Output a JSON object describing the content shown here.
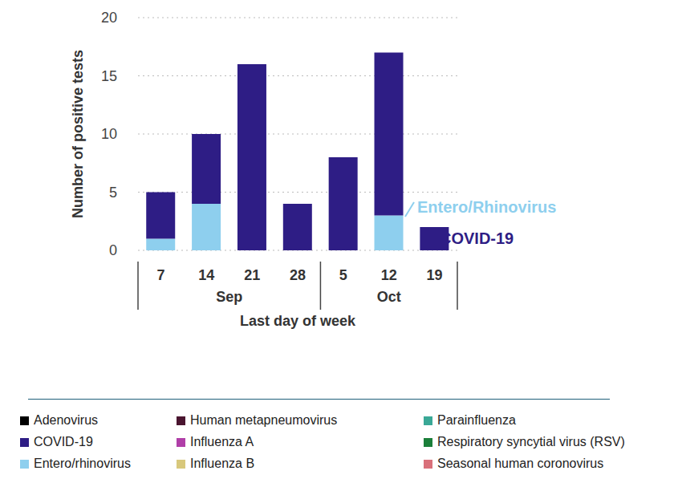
{
  "chart_data": {
    "type": "bar",
    "stacked": true,
    "grid": true,
    "legend": "bottom",
    "data_labels": false,
    "x_label": "Last day of week",
    "y_label": "Number of positive tests",
    "categories": [
      "7",
      "14",
      "21",
      "28",
      "5",
      "12",
      "19"
    ],
    "groups": [
      {
        "label": "Sep",
        "size": 4
      },
      {
        "label": "Oct",
        "size": 3
      }
    ],
    "ylim": [
      0,
      20
    ],
    "yticks": [
      0,
      5,
      10,
      15,
      20
    ],
    "series": [
      {
        "name": "Adenovirus",
        "color": "#000000",
        "values": [
          0,
          0,
          0,
          0,
          0,
          0,
          0
        ]
      },
      {
        "name": "Human metapneumovirus",
        "color": "#4a1530",
        "values": [
          0,
          0,
          0,
          0,
          0,
          0,
          0
        ]
      },
      {
        "name": "Parainfluenza",
        "color": "#3aa896",
        "values": [
          0,
          0,
          0,
          0,
          0,
          0,
          0
        ]
      },
      {
        "name": "COVID-19",
        "color": "#2e1d85",
        "values": [
          4,
          6,
          16,
          4,
          8,
          14,
          2
        ]
      },
      {
        "name": "Influenza A",
        "color": "#b03fa8",
        "values": [
          0,
          0,
          0,
          0,
          0,
          0,
          0
        ]
      },
      {
        "name": "Respiratory syncytial virus (RSV)",
        "color": "#1b7f3a",
        "values": [
          0,
          0,
          0,
          0,
          0,
          0,
          0
        ]
      },
      {
        "name": "Entero/rhinovirus",
        "color": "#8ecfee",
        "values": [
          1,
          4,
          0,
          0,
          0,
          3,
          0
        ]
      },
      {
        "name": "Influenza B",
        "color": "#d8c87c",
        "values": [
          0,
          0,
          0,
          0,
          0,
          0,
          0
        ]
      },
      {
        "name": "Seasonal human coronovirus",
        "color": "#d9707a",
        "values": [
          0,
          0,
          0,
          0,
          0,
          0,
          0
        ]
      }
    ],
    "annotations": [
      {
        "text": "Entero/Rhinovirus",
        "color": "#8ecfee"
      },
      {
        "text": "COVID-19",
        "color": "#2e1d85"
      }
    ]
  }
}
